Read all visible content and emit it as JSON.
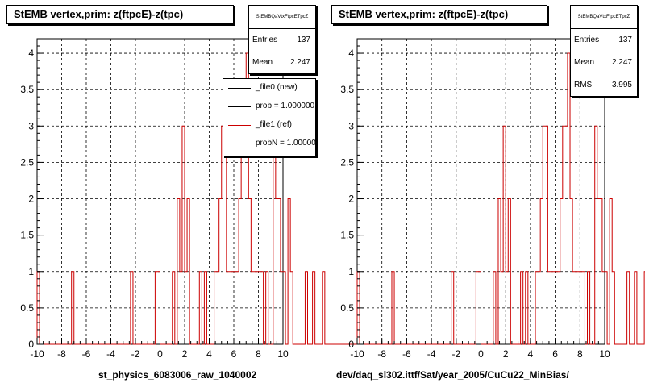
{
  "colors": {
    "histogram": "#cc0000",
    "axis": "#000000",
    "grid": "#000000",
    "background": "#ffffff"
  },
  "panels": [
    {
      "title": "StEMB  vertex,prim: z(ftpcE)-z(tpc)",
      "stats": {
        "name": "StEMBQaVtxFtpcETpcZ",
        "rows": [
          {
            "key": "Entries",
            "value": "137"
          },
          {
            "key": "Mean",
            "value": "2.247"
          }
        ]
      },
      "legend": [
        {
          "label": "_file0 (new)",
          "color": "#000000"
        },
        {
          "label": "prob = 1.000000",
          "color": "#000000"
        },
        {
          "label": "_file1 (ref)",
          "color": "#cc0000"
        },
        {
          "label": "probN = 1.000000",
          "color": "#cc0000"
        }
      ],
      "xlabel": "st_physics_6083006_raw_1040002"
    },
    {
      "title": "StEMB  vertex,prim: z(ftpcE)-z(tpc)",
      "stats": {
        "name": "StEMBQaVtxFtpcETpcZ",
        "rows": [
          {
            "key": "Entries",
            "value": "137"
          },
          {
            "key": "Mean",
            "value": "2.247"
          },
          {
            "key": "RMS",
            "value": "3.995"
          }
        ]
      },
      "xlabel": "dev/daq_sl302.ittf/Sat/year_2005/CuCu22_MinBias/"
    }
  ],
  "chart_data": [
    {
      "type": "bar",
      "style": "step-histogram",
      "grid": true,
      "xlim": [
        -10,
        10
      ],
      "ylim": [
        0,
        4.2
      ],
      "xticks": [
        "-10",
        "-8",
        "-6",
        "-4",
        "-2",
        "0",
        "2",
        "4",
        "6",
        "8",
        "10"
      ],
      "yticks": [
        "0",
        "0.5",
        "1",
        "1.5",
        "2",
        "2.5",
        "3",
        "3.5",
        "4"
      ],
      "bin_width": 0.2,
      "bin_edges_start": -10,
      "values": [
        1,
        0,
        0,
        0,
        0,
        0,
        0,
        0,
        0,
        0,
        0,
        0,
        0,
        0,
        1,
        0,
        0,
        0,
        0,
        0,
        0,
        0,
        0,
        0,
        0,
        0,
        0,
        0,
        0,
        0,
        0,
        0,
        0,
        0,
        0,
        0,
        0,
        0,
        1,
        0,
        0,
        0,
        0,
        0,
        0,
        0,
        0,
        0,
        1,
        1,
        0,
        0,
        0,
        0,
        0,
        1,
        0,
        2,
        1,
        3,
        1,
        2,
        0,
        0,
        0,
        0,
        1,
        0,
        1,
        0,
        0,
        0,
        1,
        1,
        2,
        3,
        3,
        1,
        1,
        1,
        1,
        1,
        2,
        3,
        3,
        4,
        2,
        1,
        1,
        1,
        1,
        1,
        0,
        1,
        0,
        0,
        3,
        2,
        2,
        1,
        1,
        0,
        2,
        1,
        0,
        0,
        0,
        0,
        0,
        1,
        0,
        0,
        1,
        0,
        0,
        0,
        1,
        0,
        0,
        0,
        0,
        0,
        0,
        0,
        0,
        0,
        0,
        0,
        0,
        0,
        0,
        0,
        0,
        0,
        0,
        0,
        0,
        0,
        0,
        0,
        0,
        0,
        0,
        0,
        1,
        0,
        0,
        1,
        0,
        0,
        0,
        0,
        0,
        0,
        0,
        0,
        0,
        0,
        0,
        0,
        0,
        0,
        0,
        0,
        0,
        0,
        0,
        0,
        0,
        0,
        0,
        0,
        0,
        0,
        0,
        0,
        0,
        0,
        0,
        0,
        0,
        0,
        0,
        0,
        0,
        0,
        0,
        0,
        0,
        0,
        0,
        0,
        0,
        0,
        0,
        0,
        0,
        0,
        0,
        0,
        0,
        0
      ]
    },
    {
      "type": "bar",
      "style": "step-histogram",
      "grid": true,
      "xlim": [
        -10,
        10
      ],
      "ylim": [
        0,
        4.2
      ],
      "xticks": [
        "-10",
        "-8",
        "-6",
        "-4",
        "-2",
        "0",
        "2",
        "4",
        "6",
        "8",
        "10"
      ],
      "yticks": [
        "0",
        "0.5",
        "1",
        "1.5",
        "2",
        "2.5",
        "3",
        "3.5",
        "4"
      ],
      "bin_width": 0.2,
      "bin_edges_start": -10,
      "values": [
        1,
        0,
        0,
        0,
        0,
        0,
        0,
        0,
        0,
        0,
        0,
        0,
        0,
        0,
        1,
        0,
        0,
        0,
        0,
        0,
        0,
        0,
        0,
        0,
        0,
        0,
        0,
        0,
        0,
        0,
        0,
        0,
        0,
        0,
        0,
        0,
        0,
        0,
        1,
        0,
        0,
        0,
        0,
        0,
        0,
        0,
        0,
        0,
        1,
        1,
        0,
        0,
        0,
        0,
        0,
        1,
        0,
        2,
        1,
        3,
        1,
        2,
        0,
        0,
        0,
        0,
        1,
        0,
        1,
        0,
        0,
        0,
        1,
        1,
        2,
        3,
        3,
        1,
        1,
        1,
        1,
        1,
        2,
        3,
        3,
        4,
        2,
        1,
        1,
        1,
        1,
        1,
        0,
        1,
        0,
        0,
        3,
        2,
        2,
        1,
        1,
        0,
        2,
        1,
        0,
        0,
        0,
        0,
        0,
        1,
        0,
        0,
        1,
        0,
        0,
        0,
        1,
        0,
        0,
        0,
        0,
        0,
        0,
        0,
        0,
        0,
        0,
        0,
        0,
        0,
        0,
        0,
        0,
        0,
        0,
        0,
        0,
        0,
        0,
        0,
        0,
        0,
        0,
        0,
        1,
        0,
        0,
        1,
        0,
        0,
        0,
        0,
        0,
        0,
        0,
        0,
        0,
        0,
        0,
        0,
        0,
        0,
        0,
        0,
        0,
        0,
        0,
        0,
        0,
        0,
        0,
        0,
        0,
        0,
        0,
        0,
        0,
        0,
        0,
        0,
        0,
        0,
        0,
        0,
        0,
        0,
        0,
        0,
        0,
        0,
        0,
        0,
        0,
        0,
        0,
        0,
        0,
        0,
        0,
        0,
        0,
        0
      ]
    }
  ]
}
